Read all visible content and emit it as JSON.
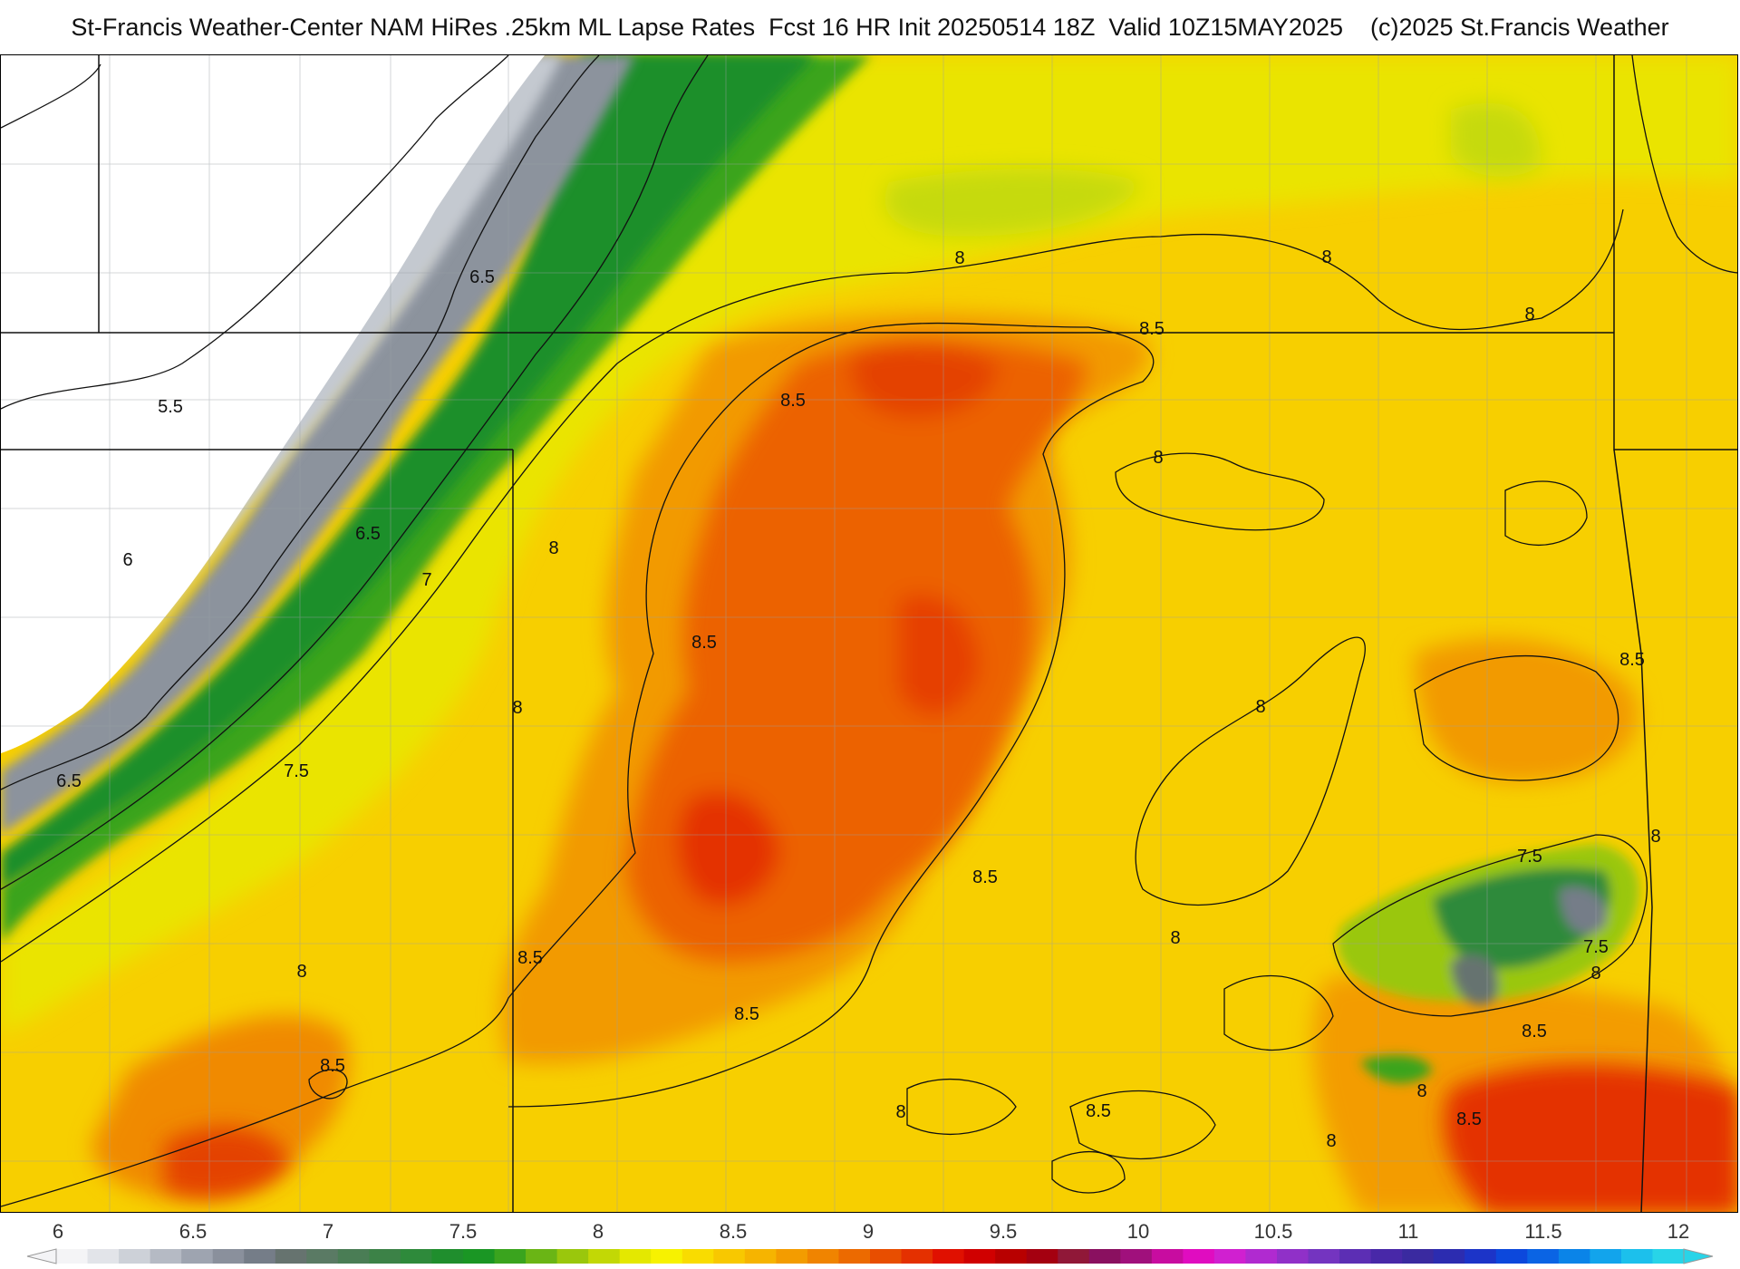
{
  "title": "St-Francis Weather-Center NAM HiRes .25km ML Lapse Rates  Fcst 16 HR Init 20250514 18Z  Valid 10Z15MAY2025    (c)2025 St.Francis Weather",
  "map": {
    "contour_labels": [
      "6.5",
      "5.5",
      "6.5",
      "6",
      "7",
      "6.5",
      "7.5",
      "8",
      "8",
      "8",
      "8.5",
      "8.5",
      "8.5",
      "8",
      "8.5",
      "8",
      "8",
      "8.5",
      "8",
      "8.5",
      "8.5",
      "8",
      "7.5",
      "7.5",
      "8",
      "8.5",
      "8",
      "8",
      "8.5",
      "8",
      "8",
      "8.5",
      "8.5",
      "8"
    ]
  },
  "colorbar": {
    "ticks": [
      "6",
      "6.5",
      "7",
      "7.5",
      "8",
      "8.5",
      "9",
      "9.5",
      "10",
      "10.5",
      "11",
      "11.5",
      "12"
    ],
    "colors": [
      "#f4f4f6",
      "#e2e4e9",
      "#cdd1d8",
      "#b5bac4",
      "#9ea4b0",
      "#8a909c",
      "#757d88",
      "#66736f",
      "#5a7a64",
      "#4a7d55",
      "#3c8247",
      "#2e8a3b",
      "#1f8e2d",
      "#1a9624",
      "#3aa41e",
      "#6ab515",
      "#9ac70c",
      "#c2d805",
      "#e4e800",
      "#f7f200",
      "#f9dc00",
      "#f8c800",
      "#f6b400",
      "#f39c00",
      "#f08400",
      "#ec6a00",
      "#e84e00",
      "#e43000",
      "#e01000",
      "#d00000",
      "#b80000",
      "#a40010",
      "#901838",
      "#8a1060",
      "#a0107c",
      "#c80ca0",
      "#e00cc0",
      "#d020d0",
      "#b02ad0",
      "#9030c8",
      "#7434c0",
      "#5c2eb4",
      "#4828a8",
      "#3a2aa0",
      "#2c2cb0",
      "#1c34c8",
      "#0c48dc",
      "#0a64e4",
      "#0a84e8",
      "#12a4ec",
      "#1cc0ec",
      "#28d4e8"
    ]
  }
}
